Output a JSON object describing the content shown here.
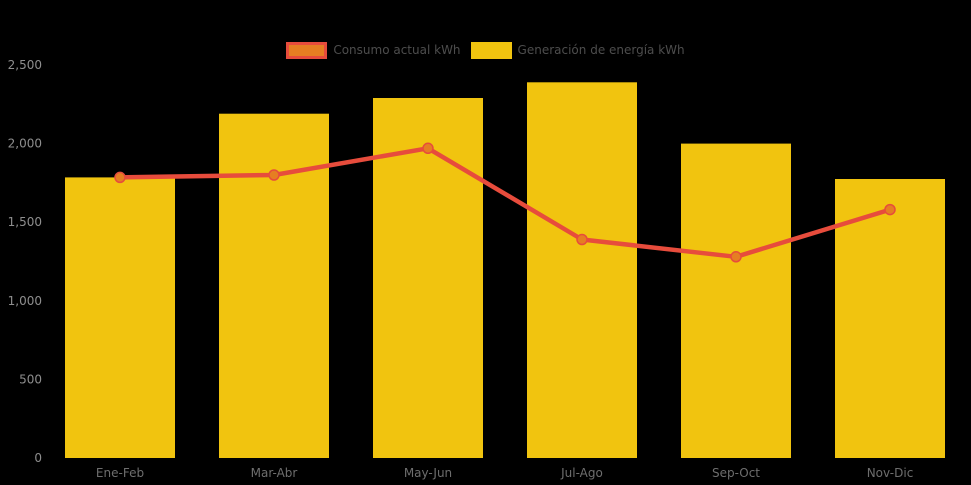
{
  "background_color": "#000000",
  "legend": {
    "items": [
      {
        "label": "Consumo actual kWh",
        "series_type": "line",
        "swatch_fill": "#E67E22",
        "swatch_border": "#E74C3C"
      },
      {
        "label": "Generación de energía kWh",
        "series_type": "bar",
        "swatch_fill": "#F1C40F",
        "swatch_border": "#F1C40F"
      }
    ]
  },
  "chart_data": {
    "type": "bar",
    "categories": [
      "Ene-Feb",
      "Mar-Abr",
      "May-Jun",
      "Jul-Ago",
      "Sep-Oct",
      "Nov-Dic"
    ],
    "series": [
      {
        "name": "Generación de energía kWh",
        "type": "bar",
        "color": "#F1C40F",
        "values": [
          1785,
          2190,
          2290,
          2390,
          2000,
          1775
        ]
      },
      {
        "name": "Consumo actual kWh",
        "type": "line",
        "color": "#E74C3C",
        "marker_color": "#E67E22",
        "values": [
          1785,
          1800,
          1970,
          1390,
          1280,
          1580
        ]
      }
    ],
    "title": "",
    "xlabel": "",
    "ylabel": "",
    "ylim": [
      0,
      2500
    ],
    "yticks": [
      0,
      500,
      1000,
      1500,
      2000,
      2500
    ],
    "ytick_labels": [
      "0",
      "500",
      "1,000",
      "1,500",
      "2,000",
      "2,500"
    ],
    "ytick_color": "#8E8E8E",
    "xtick_color": "#6E6E6E",
    "grid": false,
    "legend_position": "top"
  }
}
